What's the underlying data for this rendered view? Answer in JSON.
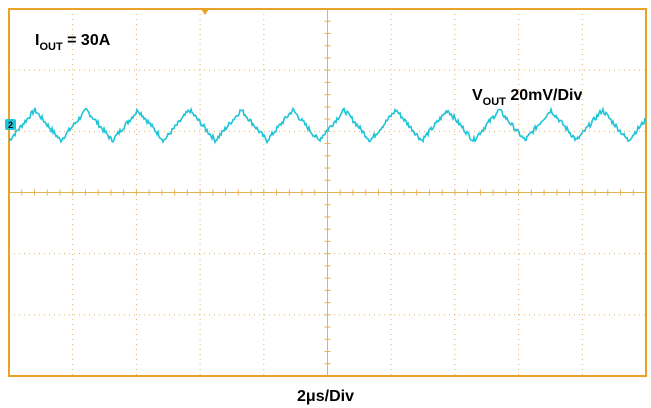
{
  "chart_data": {
    "type": "line",
    "annotations": {
      "current_base": "I",
      "current_sub": "OUT",
      "current_value": " = 30A",
      "voltage_base": "V",
      "voltage_sub": "OUT",
      "voltage_scale": " 20mV/Div"
    },
    "channel_marker": "2",
    "xlabel": "2μs/Div",
    "divisions": {
      "x": 10,
      "y": 6
    },
    "grid": true,
    "trace": {
      "name": "",
      "unit_x": "μs",
      "unit_y": "mV",
      "x_range": [
        0,
        20
      ],
      "y_offset_divs_from_center": 1.1,
      "ripple_period_us": 1.62,
      "ripple_peak_to_peak_mV": 10,
      "color": "#1fc4d6"
    },
    "colors": {
      "frame": "#e9a227",
      "grid": "#e3b255",
      "trace": "#1fc4d6"
    }
  }
}
